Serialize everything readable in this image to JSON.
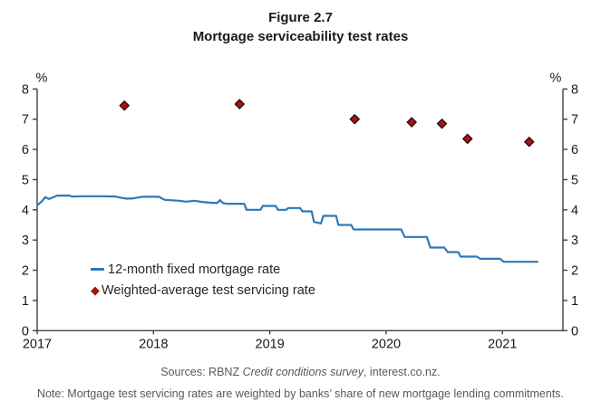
{
  "figure": {
    "label": "Figure 2.7",
    "title": "Mortgage serviceability test rates"
  },
  "legend": {
    "items": [
      {
        "label": "12-month fixed mortgage rate",
        "marker": "line-dash",
        "color": "#2E79B8"
      },
      {
        "label": "Weighted-average test servicing rate",
        "marker": "diamond",
        "color": "#A31515"
      }
    ]
  },
  "footer": {
    "sources_prefix": "Sources: RBNZ ",
    "sources_italic": "Credit conditions survey",
    "sources_suffix": ", interest.co.nz.",
    "note": "Note: Mortgage test servicing rates are weighted by banks’ share of new mortgage lending commitments."
  },
  "chart_data": {
    "type": "line",
    "title": "Mortgage serviceability test rates",
    "unit_label": "%",
    "xlabel": "",
    "ylabel": "%",
    "ylim": [
      0,
      8
    ],
    "yticks": [
      0,
      1,
      2,
      3,
      4,
      5,
      6,
      7,
      8
    ],
    "xlim": [
      2017,
      2021.52
    ],
    "xticks": [
      2017,
      2018,
      2019,
      2020,
      2021
    ],
    "grid": false,
    "legend_position": "inside-lower-left",
    "axis_color": "#404040",
    "series": [
      {
        "name": "12-month fixed mortgage rate",
        "type": "line",
        "color": "#2E79B8",
        "points": [
          [
            2017.0,
            4.15
          ],
          [
            2017.04,
            4.28
          ],
          [
            2017.07,
            4.42
          ],
          [
            2017.1,
            4.36
          ],
          [
            2017.13,
            4.4
          ],
          [
            2017.17,
            4.47
          ],
          [
            2017.28,
            4.47
          ],
          [
            2017.3,
            4.44
          ],
          [
            2017.4,
            4.45
          ],
          [
            2017.55,
            4.45
          ],
          [
            2017.67,
            4.44
          ],
          [
            2017.72,
            4.4
          ],
          [
            2017.77,
            4.37
          ],
          [
            2017.83,
            4.38
          ],
          [
            2017.9,
            4.43
          ],
          [
            2018.05,
            4.43
          ],
          [
            2018.08,
            4.36
          ],
          [
            2018.1,
            4.33
          ],
          [
            2018.22,
            4.3
          ],
          [
            2018.28,
            4.27
          ],
          [
            2018.35,
            4.3
          ],
          [
            2018.42,
            4.26
          ],
          [
            2018.5,
            4.23
          ],
          [
            2018.55,
            4.23
          ],
          [
            2018.57,
            4.32
          ],
          [
            2018.6,
            4.22
          ],
          [
            2018.63,
            4.2
          ],
          [
            2018.78,
            4.2
          ],
          [
            2018.8,
            4.0
          ],
          [
            2018.92,
            4.0
          ],
          [
            2018.94,
            4.13
          ],
          [
            2019.05,
            4.13
          ],
          [
            2019.07,
            4.0
          ],
          [
            2019.14,
            4.0
          ],
          [
            2019.16,
            4.06
          ],
          [
            2019.26,
            4.06
          ],
          [
            2019.28,
            3.95
          ],
          [
            2019.36,
            3.95
          ],
          [
            2019.38,
            3.6
          ],
          [
            2019.44,
            3.55
          ],
          [
            2019.46,
            3.8
          ],
          [
            2019.57,
            3.8
          ],
          [
            2019.59,
            3.5
          ],
          [
            2019.7,
            3.5
          ],
          [
            2019.72,
            3.35
          ],
          [
            2020.13,
            3.35
          ],
          [
            2020.16,
            3.1
          ],
          [
            2020.35,
            3.1
          ],
          [
            2020.38,
            2.75
          ],
          [
            2020.5,
            2.75
          ],
          [
            2020.53,
            2.6
          ],
          [
            2020.62,
            2.6
          ],
          [
            2020.64,
            2.45
          ],
          [
            2020.78,
            2.45
          ],
          [
            2020.81,
            2.38
          ],
          [
            2020.98,
            2.38
          ],
          [
            2021.01,
            2.28
          ],
          [
            2021.3,
            2.28
          ]
        ]
      },
      {
        "name": "Weighted-average test servicing rate",
        "type": "scatter",
        "marker": "diamond",
        "color": "#A31515",
        "marker_edge_color": "#200505",
        "points": [
          [
            2017.75,
            7.45
          ],
          [
            2018.74,
            7.5
          ],
          [
            2019.73,
            7.0
          ],
          [
            2020.22,
            6.9
          ],
          [
            2020.48,
            6.85
          ],
          [
            2020.7,
            6.35
          ],
          [
            2021.23,
            6.25
          ]
        ]
      }
    ]
  }
}
